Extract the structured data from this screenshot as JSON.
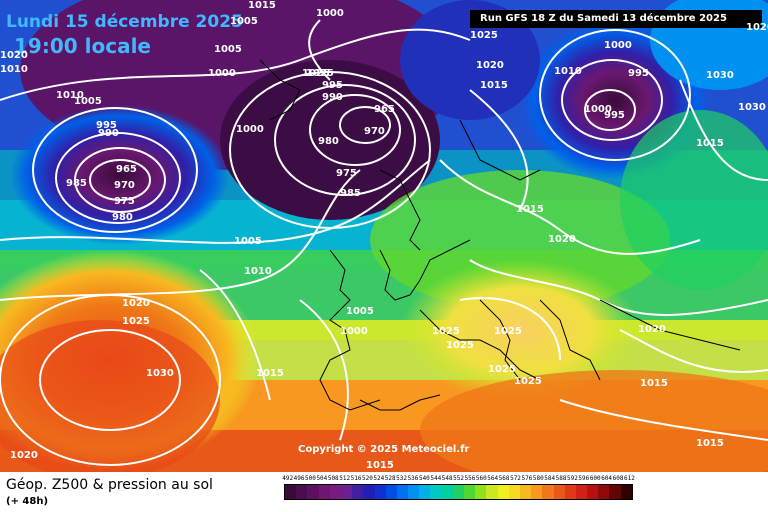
{
  "header": {
    "date": "Lundi 15 décembre 2025",
    "time": "19:00 locale",
    "run": "Run GFS 18 Z du Samedi 13 décembre 2025"
  },
  "copyright": "Copyright © 2025 Meteociel.fr",
  "footer": {
    "title": "Géop. Z500 & pression au sol",
    "lead": "(+ 48h)"
  },
  "legend": {
    "values": [
      "492",
      "496",
      "500",
      "504",
      "508",
      "512",
      "516",
      "520",
      "524",
      "528",
      "532",
      "536",
      "540",
      "544",
      "548",
      "552",
      "556",
      "560",
      "564",
      "568",
      "572",
      "576",
      "580",
      "584",
      "588",
      "592",
      "596",
      "600",
      "604",
      "608",
      "612"
    ],
    "colors": [
      "#3a0a3a",
      "#4a0d4e",
      "#5e1060",
      "#701570",
      "#7a1a80",
      "#6a2090",
      "#4020a0",
      "#2020b8",
      "#1030d0",
      "#0050e8",
      "#0070f0",
      "#0090f0",
      "#00b0e8",
      "#00c8c8",
      "#00d0a0",
      "#20d060",
      "#50d830",
      "#90e020",
      "#c8e820",
      "#f0f020",
      "#f8d820",
      "#f8b820",
      "#f89820",
      "#f07818",
      "#e85818",
      "#e03818",
      "#d02018",
      "#b81010",
      "#900808",
      "#600404",
      "#300000"
    ]
  },
  "isobars": [
    "1010",
    "1020",
    "1025",
    "1030",
    "1015",
    "1020",
    "1005",
    "1000",
    "995",
    "990",
    "985",
    "980",
    "975",
    "970",
    "965",
    "1005",
    "1010",
    "1025",
    "1000",
    "995",
    "990",
    "1015",
    "1025",
    "1020",
    "1005",
    "1000",
    "995",
    "985",
    "980",
    "975",
    "970",
    "965",
    "1010",
    "1000",
    "1010",
    "1005",
    "1000",
    "995",
    "1030",
    "1025",
    "1015",
    "1020",
    "1020",
    "1025",
    "1025",
    "1025",
    "1025",
    "1025",
    "1020",
    "1015",
    "1015",
    "1030",
    "1020",
    "1025",
    "1015",
    "1020",
    "1030",
    "1005",
    "1000"
  ]
}
